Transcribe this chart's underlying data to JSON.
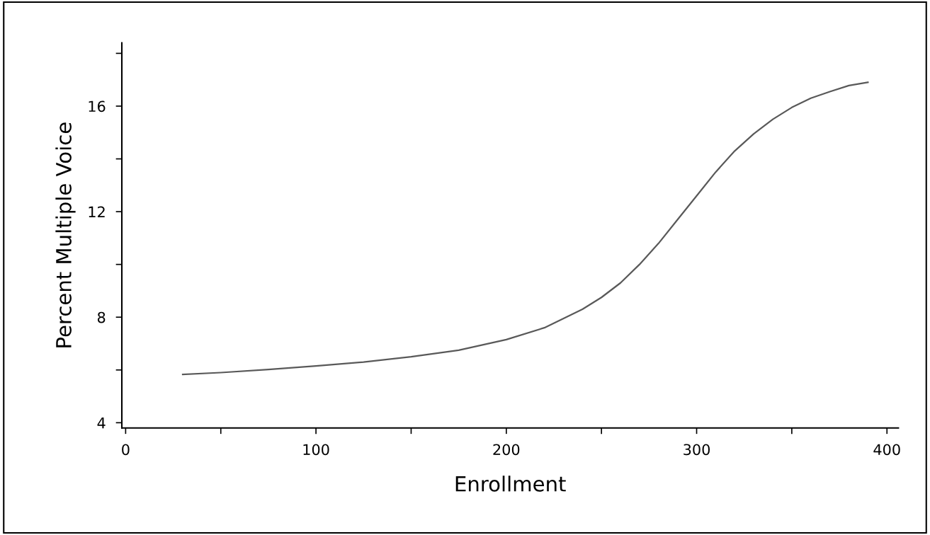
{
  "chart_data": {
    "type": "line",
    "xlabel": "Enrollment",
    "ylabel": "Percent Multiple Voice",
    "x": [
      30,
      50,
      75,
      100,
      125,
      150,
      175,
      200,
      220,
      240,
      250,
      260,
      270,
      280,
      290,
      300,
      310,
      320,
      330,
      340,
      350,
      360,
      370,
      380,
      390
    ],
    "series": [
      {
        "color": "#595959",
        "values": [
          5.83,
          5.9,
          6.02,
          6.15,
          6.3,
          6.5,
          6.75,
          7.15,
          7.6,
          8.3,
          8.75,
          9.3,
          10.0,
          10.8,
          11.7,
          12.6,
          13.5,
          14.3,
          14.95,
          15.5,
          15.95,
          16.3,
          16.55,
          16.78,
          16.9
        ]
      }
    ],
    "xlim": [
      -2,
      406
    ],
    "ylim": [
      3.8,
      18.4
    ],
    "xticks": [
      0,
      {
        "value": 50,
        "label": null
      },
      100,
      {
        "value": 150,
        "label": null
      },
      200,
      {
        "value": 250,
        "label": null
      },
      300,
      {
        "value": 350,
        "label": null
      },
      400
    ],
    "yticks": [
      4,
      {
        "value": 6,
        "label": null
      },
      8,
      {
        "value": 10,
        "label": null
      },
      12,
      {
        "value": 14,
        "label": null
      },
      16,
      {
        "value": 18,
        "label": null
      }
    ],
    "grid": false,
    "legend": false,
    "marker": "none",
    "line_style": "solid"
  }
}
